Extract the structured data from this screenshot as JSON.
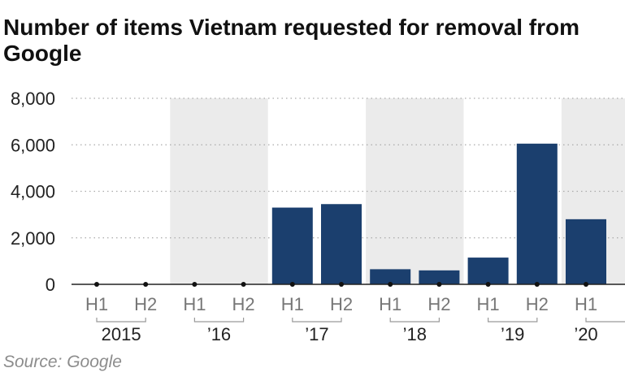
{
  "chart_data": {
    "type": "bar",
    "title": "Number of items Vietnam requested for removal from Google",
    "source": "Source: Google",
    "ylim": [
      0,
      8000
    ],
    "yticks": [
      0,
      2000,
      4000,
      6000,
      8000
    ],
    "ytick_labels": [
      "0",
      "2,000",
      "4,000",
      "6,000",
      "8,000"
    ],
    "grid": "horizontal-dotted",
    "categories": [
      "H1",
      "H2",
      "H1",
      "H2",
      "H1",
      "H2",
      "H1",
      "H2",
      "H1",
      "H2",
      "H1"
    ],
    "values": [
      0,
      0,
      0,
      0,
      3300,
      3450,
      650,
      600,
      1150,
      6050,
      2800
    ],
    "groups": [
      {
        "label": "2015",
        "shaded": false
      },
      {
        "label": "’16",
        "shaded": true
      },
      {
        "label": "’17",
        "shaded": false
      },
      {
        "label": "’18",
        "shaded": true
      },
      {
        "label": "’19",
        "shaded": false
      },
      {
        "label": "’20",
        "shaded": true
      }
    ],
    "colors": {
      "bar": "#1b3f6e",
      "shade": "#ebebeb",
      "axis": "#222222",
      "grid": "#aaaaaa",
      "tick_text": "#777777"
    }
  }
}
